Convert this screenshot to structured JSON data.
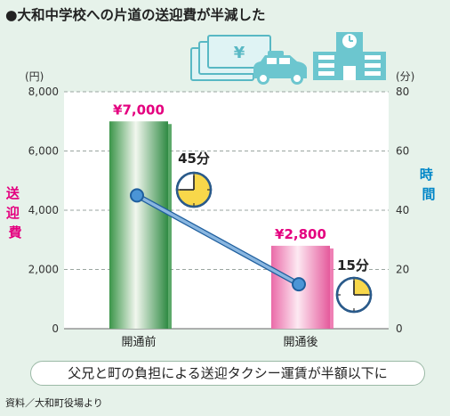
{
  "title": "●大和中学校への片道の送迎費が半減した",
  "caption": "父兄と町の負担による送迎タクシー運賃が半額以下に",
  "source": "資料／大和町役場より",
  "chart_data": {
    "type": "bar+line",
    "categories": [
      "開通前",
      "開通後"
    ],
    "bar_series": {
      "name": "送迎費",
      "values": [
        7000,
        2800
      ],
      "labels": [
        "¥7,000",
        "¥2,800"
      ],
      "colors": [
        "#3f9a50",
        "#ec6aa8"
      ]
    },
    "line_series": {
      "name": "時間",
      "values": [
        45,
        15
      ],
      "labels": [
        "45分",
        "15分"
      ],
      "color": "#89b6e0"
    },
    "left_axis": {
      "unit": "(円)",
      "label": "送迎費",
      "ylim": [
        0,
        8000
      ],
      "ticks": [
        0,
        2000,
        4000,
        6000,
        8000
      ],
      "tick_labels": [
        "0",
        "2,000",
        "4,000",
        "6,000",
        "8,000"
      ],
      "color": "#e4007f"
    },
    "right_axis": {
      "unit": "(分)",
      "label": "時間",
      "ylim": [
        0,
        80
      ],
      "ticks": [
        0,
        20,
        40,
        60,
        80
      ],
      "tick_labels": [
        "0",
        "20",
        "40",
        "60",
        "80"
      ],
      "color": "#0086c8"
    },
    "grid": "horizontal dashed",
    "colors": {
      "background": "#e6f2ea",
      "plot_background": "#ffffff",
      "clock_face": "#f8d74a",
      "clock_ring": "#2a5a8a",
      "illustration": "#6cc6cf"
    }
  }
}
